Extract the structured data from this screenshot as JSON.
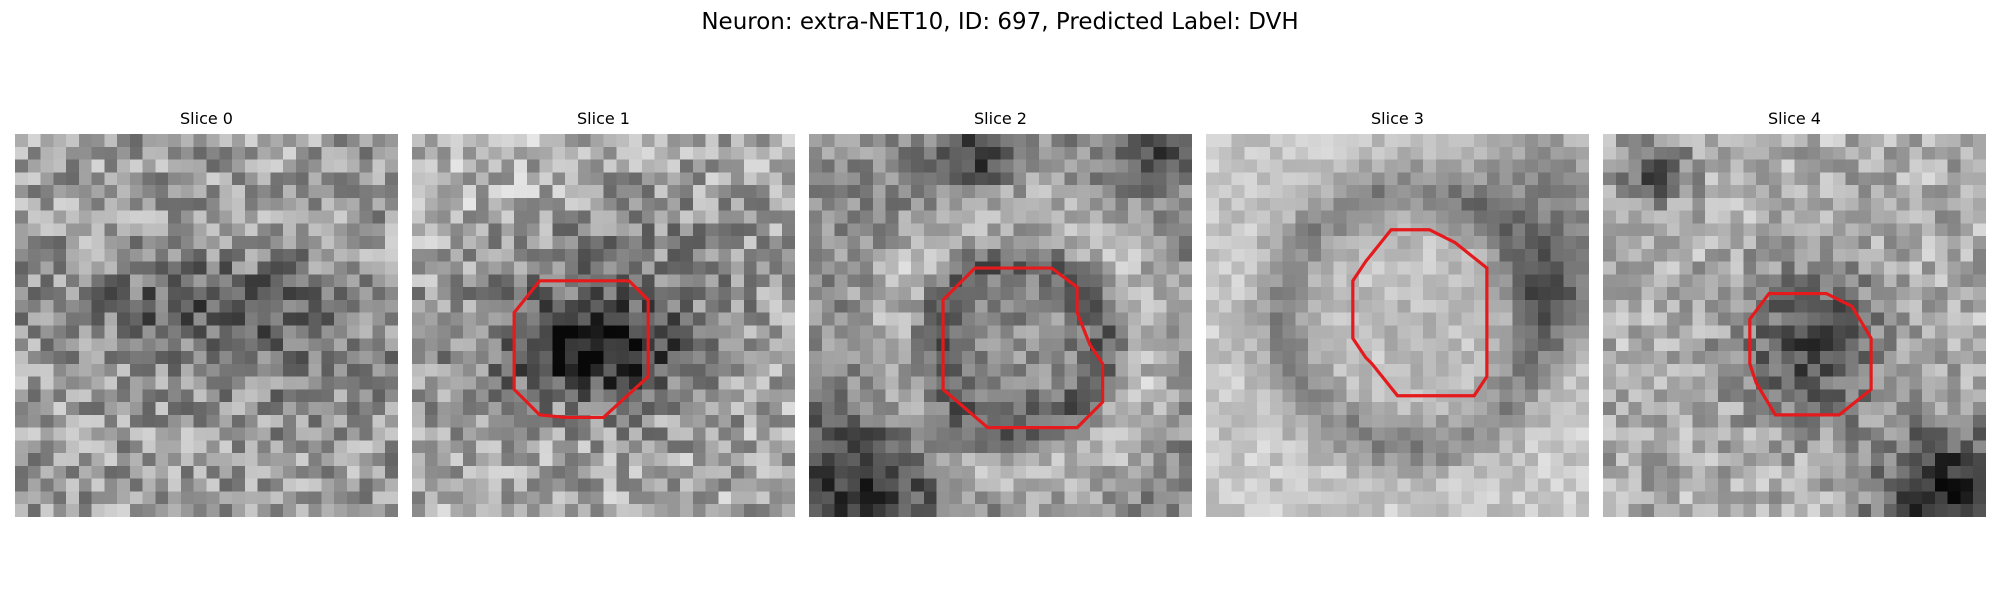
{
  "figure": {
    "title": "Neuron: extra-NET10, ID: 697, Predicted Label: DVH"
  },
  "colors": {
    "contour": "#e41a1c",
    "background": "#ffffff"
  },
  "slices": [
    {
      "label": "Slice 0",
      "has_contour": false,
      "image": "grayscale-microscopy-slice"
    },
    {
      "label": "Slice 1",
      "has_contour": true,
      "image": "grayscale-microscopy-slice"
    },
    {
      "label": "Slice 2",
      "has_contour": true,
      "image": "grayscale-microscopy-slice"
    },
    {
      "label": "Slice 3",
      "has_contour": true,
      "image": "grayscale-microscopy-slice"
    },
    {
      "label": "Slice 4",
      "has_contour": true,
      "image": "grayscale-microscopy-slice"
    }
  ]
}
